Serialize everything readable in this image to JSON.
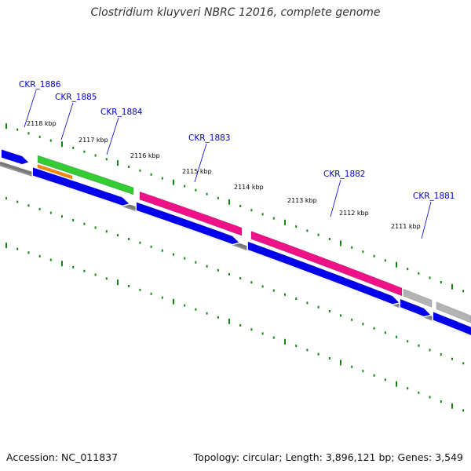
{
  "title": "Clostridium kluyveri NBRC 12016, complete genome",
  "accession_text": "Accession: NC_011837",
  "summary_text": "Topology: circular; Length: 3,896,121 bp; Genes: 3,549",
  "scale": {
    "tick_labels": [
      "2118 kbp",
      "2117 kbp",
      "2116 kbp",
      "2115 kbp",
      "2114 kbp",
      "2113 kbp",
      "2112 kbp",
      "2111 kbp"
    ]
  },
  "genes": [
    {
      "id": "CKR_1886",
      "label": "CKR_1886"
    },
    {
      "id": "CKR_1885",
      "label": "CKR_1885"
    },
    {
      "id": "CKR_1884",
      "label": "CKR_1884"
    },
    {
      "id": "CKR_1883",
      "label": "CKR_1883"
    },
    {
      "id": "CKR_1882",
      "label": "CKR_1882"
    },
    {
      "id": "CKR_1881",
      "label": "CKR_1881"
    }
  ],
  "colors": {
    "gene": "#0000ee",
    "cds_green": "#33cc33",
    "cds_pink": "#ee1188",
    "cds_orange": "#ff8800",
    "cds_gray": "#b3b3b3",
    "tick": "#118811",
    "backbone": "#777777",
    "label": "#0000cc"
  },
  "icons": [
    "none"
  ]
}
